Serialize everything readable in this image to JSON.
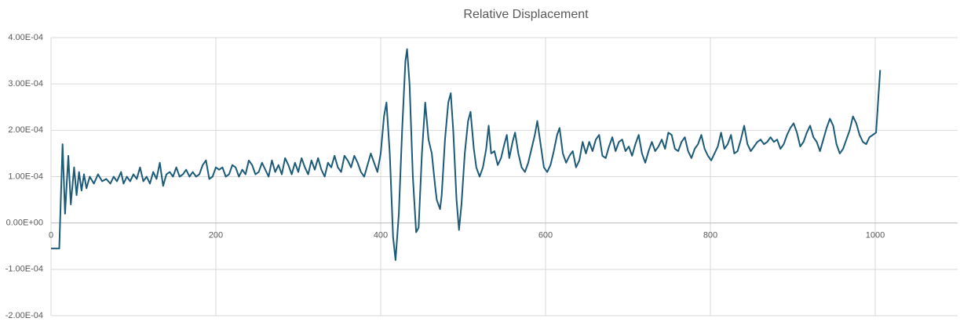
{
  "chart_data": {
    "type": "line",
    "title": "Relative Displacement",
    "x": [
      0,
      10,
      14,
      17,
      21,
      24,
      28,
      31,
      34,
      37,
      40,
      43,
      47,
      52,
      57,
      62,
      67,
      72,
      76,
      80,
      85,
      88,
      92,
      96,
      100,
      104,
      108,
      112,
      116,
      120,
      124,
      128,
      132,
      136,
      140,
      144,
      148,
      152,
      156,
      160,
      164,
      168,
      172,
      176,
      180,
      184,
      188,
      192,
      196,
      200,
      204,
      208,
      212,
      216,
      220,
      224,
      228,
      232,
      236,
      240,
      244,
      248,
      252,
      256,
      260,
      264,
      268,
      272,
      276,
      280,
      284,
      288,
      292,
      296,
      300,
      304,
      308,
      312,
      316,
      320,
      324,
      328,
      332,
      336,
      340,
      344,
      348,
      352,
      356,
      360,
      364,
      368,
      372,
      376,
      380,
      384,
      388,
      392,
      396,
      400,
      404,
      407,
      411,
      415,
      418,
      422,
      426,
      430,
      432,
      435,
      439,
      443,
      446,
      450,
      454,
      458,
      462,
      466,
      468,
      472,
      474,
      478,
      482,
      485,
      488,
      492,
      495,
      498,
      502,
      506,
      509,
      513,
      516,
      520,
      524,
      528,
      531,
      534,
      538,
      542,
      546,
      550,
      553,
      556,
      560,
      563,
      567,
      571,
      575,
      579,
      583,
      587,
      590,
      594,
      598,
      602,
      606,
      610,
      614,
      617,
      621,
      625,
      629,
      633,
      637,
      641,
      645,
      649,
      653,
      657,
      661,
      665,
      669,
      673,
      677,
      681,
      685,
      689,
      693,
      697,
      701,
      705,
      709,
      713,
      717,
      721,
      725,
      729,
      733,
      737,
      741,
      745,
      749,
      753,
      757,
      761,
      765,
      769,
      773,
      777,
      781,
      785,
      789,
      793,
      797,
      801,
      805,
      809,
      813,
      817,
      821,
      825,
      829,
      833,
      837,
      841,
      845,
      849,
      853,
      857,
      861,
      865,
      869,
      873,
      877,
      881,
      885,
      889,
      893,
      897,
      901,
      905,
      909,
      913,
      917,
      921,
      925,
      929,
      933,
      937,
      941,
      945,
      949,
      953,
      957,
      961,
      965,
      969,
      973,
      977,
      981,
      985,
      989,
      993,
      997,
      1001,
      1006
    ],
    "series": [
      {
        "color": "#1b5b78",
        "values": [
          -5.5e-05,
          -5.5e-05,
          0.00017,
          2e-05,
          0.000145,
          4e-05,
          0.00012,
          6e-05,
          0.00011,
          7e-05,
          0.000105,
          7.5e-05,
          0.0001,
          8.5e-05,
          0.000105,
          9e-05,
          9.5e-05,
          8.5e-05,
          0.0001,
          9e-05,
          0.00011,
          8.5e-05,
          0.0001,
          9e-05,
          0.000105,
          9.5e-05,
          0.00012,
          9e-05,
          0.0001,
          8.5e-05,
          0.00011,
          9.5e-05,
          0.00013,
          8e-05,
          0.000105,
          0.00011,
          0.0001,
          0.00012,
          0.0001,
          0.000105,
          0.000115,
          0.0001,
          0.00011,
          0.0001,
          0.000105,
          0.000125,
          0.000135,
          9.5e-05,
          0.0001,
          0.00012,
          0.000115,
          0.00012,
          0.0001,
          0.000105,
          0.000125,
          0.00012,
          0.0001,
          0.000115,
          0.000105,
          0.000135,
          0.000125,
          0.000105,
          0.00011,
          0.00013,
          0.000115,
          0.0001,
          0.000135,
          0.00011,
          0.000125,
          0.000105,
          0.00014,
          0.000125,
          0.000105,
          0.00013,
          0.00011,
          0.00014,
          0.00012,
          0.000105,
          0.000135,
          0.000115,
          0.00014,
          0.000115,
          0.0001,
          0.00013,
          0.00012,
          0.000145,
          0.00012,
          0.00011,
          0.000145,
          0.000135,
          0.00012,
          0.000145,
          0.00013,
          0.00011,
          0.0001,
          0.000125,
          0.00015,
          0.00013,
          0.00011,
          0.00015,
          0.00023,
          0.00026,
          0.00015,
          -3e-05,
          -8e-05,
          2e-05,
          0.0002,
          0.00035,
          0.000375,
          0.0003,
          0.0001,
          -2e-05,
          -1e-05,
          0.00015,
          0.00026,
          0.00018,
          0.00015,
          8e-05,
          5e-05,
          3e-05,
          6e-05,
          0.00018,
          0.00026,
          0.00028,
          0.0002,
          5e-05,
          -1.5e-05,
          4e-05,
          0.00015,
          0.00022,
          0.00024,
          0.00016,
          0.00012,
          0.0001,
          0.00012,
          0.00016,
          0.00021,
          0.00015,
          0.000155,
          0.000125,
          0.00014,
          0.00017,
          0.00019,
          0.00014,
          0.000175,
          0.000195,
          0.00015,
          0.00012,
          0.00011,
          0.00013,
          0.00016,
          0.00019,
          0.00022,
          0.00017,
          0.00012,
          0.00011,
          0.000125,
          0.000155,
          0.00019,
          0.000205,
          0.00015,
          0.00013,
          0.000145,
          0.000155,
          0.00012,
          0.000135,
          0.000175,
          0.00015,
          0.000175,
          0.000155,
          0.00018,
          0.00019,
          0.000145,
          0.00014,
          0.000165,
          0.000185,
          0.000155,
          0.000175,
          0.00018,
          0.000155,
          0.000165,
          0.000145,
          0.00017,
          0.00019,
          0.00015,
          0.00013,
          0.000155,
          0.000175,
          0.000155,
          0.000165,
          0.00018,
          0.00016,
          0.000195,
          0.00019,
          0.00016,
          0.000155,
          0.000175,
          0.000185,
          0.000155,
          0.00014,
          0.00016,
          0.00017,
          0.00019,
          0.00016,
          0.000145,
          0.000135,
          0.00015,
          0.000165,
          0.000195,
          0.00016,
          0.00017,
          0.00019,
          0.00015,
          0.000155,
          0.00018,
          0.00021,
          0.00017,
          0.000155,
          0.000165,
          0.000175,
          0.00018,
          0.00017,
          0.000175,
          0.000185,
          0.000175,
          0.00018,
          0.00016,
          0.00017,
          0.00019,
          0.000205,
          0.000215,
          0.000195,
          0.000165,
          0.000175,
          0.000195,
          0.00021,
          0.000185,
          0.000175,
          0.000155,
          0.00018,
          0.000205,
          0.000225,
          0.00021,
          0.00017,
          0.00015,
          0.00016,
          0.00018,
          0.0002,
          0.00023,
          0.000215,
          0.00019,
          0.000175,
          0.00017,
          0.000185,
          0.00019,
          0.000195,
          0.00033
        ]
      }
    ],
    "xlim": [
      0,
      1100
    ],
    "xticks": [
      0,
      200,
      400,
      600,
      800,
      1000
    ],
    "ylim": [
      -0.0002,
      0.0004
    ],
    "yticks": [
      {
        "value": -0.0002,
        "label": "-2.00E-04"
      },
      {
        "value": -0.0001,
        "label": "-1.00E-04"
      },
      {
        "value": 0,
        "label": "0.00E+00"
      },
      {
        "value": 0.0001,
        "label": "1.00E-04"
      },
      {
        "value": 0.0002,
        "label": "2.00E-04"
      },
      {
        "value": 0.0003,
        "label": "3.00E-04"
      },
      {
        "value": 0.0004,
        "label": "4.00E-04"
      }
    ],
    "grid": true
  }
}
